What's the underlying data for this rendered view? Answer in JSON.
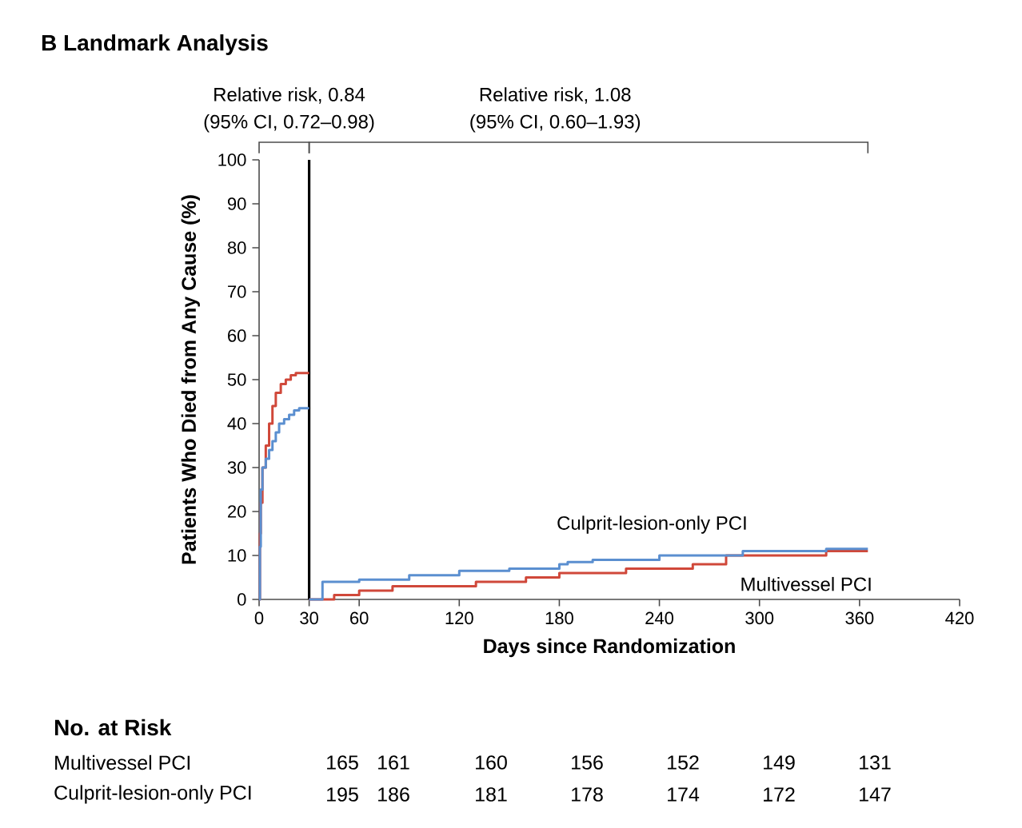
{
  "chart_data": {
    "type": "step",
    "title": "**B**  Landmark Analysis",
    "xlabel": "Days since Randomization",
    "ylabel": "Patients Who Died from Any Cause (%)",
    "xlim": [
      0,
      420
    ],
    "xticks": [
      0,
      30,
      60,
      120,
      180,
      240,
      300,
      360,
      420
    ],
    "ylim": [
      0,
      100
    ],
    "yticks": [
      0,
      10,
      20,
      30,
      40,
      50,
      60,
      70,
      80,
      90,
      100
    ],
    "grid": false,
    "series": [
      {
        "color": "#d0483a",
        "x": [
          0,
          0.5,
          1,
          2,
          4,
          6,
          8,
          10,
          13,
          16,
          19,
          22,
          30
        ],
        "values": [
          0,
          15,
          22,
          30,
          35,
          40,
          44,
          47,
          49,
          50,
          51,
          51.5,
          51.5
        ]
      },
      {
        "color": "#5b8fd0",
        "x": [
          0,
          0.5,
          1,
          2,
          4,
          6,
          8,
          10,
          12,
          15,
          18,
          21,
          24,
          30
        ],
        "values": [
          0,
          12,
          25,
          30,
          32,
          34,
          36,
          38,
          40,
          41,
          42,
          43,
          43.5,
          43.5
        ]
      },
      {
        "name": "Multivessel PCI",
        "color": "#d0483a",
        "x": [
          30,
          45,
          60,
          80,
          120,
          130,
          160,
          180,
          190,
          220,
          260,
          280,
          330,
          340,
          365
        ],
        "values": [
          0,
          1,
          2,
          3,
          3,
          4,
          5,
          6,
          6,
          7,
          8,
          10,
          10,
          11,
          11
        ]
      },
      {
        "name": "Culprit-lesion-only PCI",
        "color": "#5b8fd0",
        "x": [
          30,
          38,
          60,
          90,
          120,
          150,
          180,
          185,
          200,
          240,
          270,
          290,
          330,
          340,
          365
        ],
        "values": [
          0,
          4,
          4.5,
          5.5,
          6.5,
          7,
          8,
          8.5,
          9,
          10,
          10,
          11,
          11,
          11.5,
          11.5
        ]
      }
    ],
    "ref_lines": [
      {
        "axis": "x",
        "value": 30,
        "color": "#000000"
      }
    ],
    "annotations": [
      "Relative risk, 0.84",
      "(95% CI, 0.72–0.98)",
      "Relative risk, 1.08",
      "(95% CI, 0.60–1.93)",
      "**No. at Risk**",
      "Multivessel PCI",
      "165",
      "161",
      "160",
      "156",
      "152",
      "149",
      "131",
      "Culprit-lesion-only PCI",
      "195",
      "186",
      "181",
      "178",
      "174",
      "172",
      "147"
    ]
  }
}
